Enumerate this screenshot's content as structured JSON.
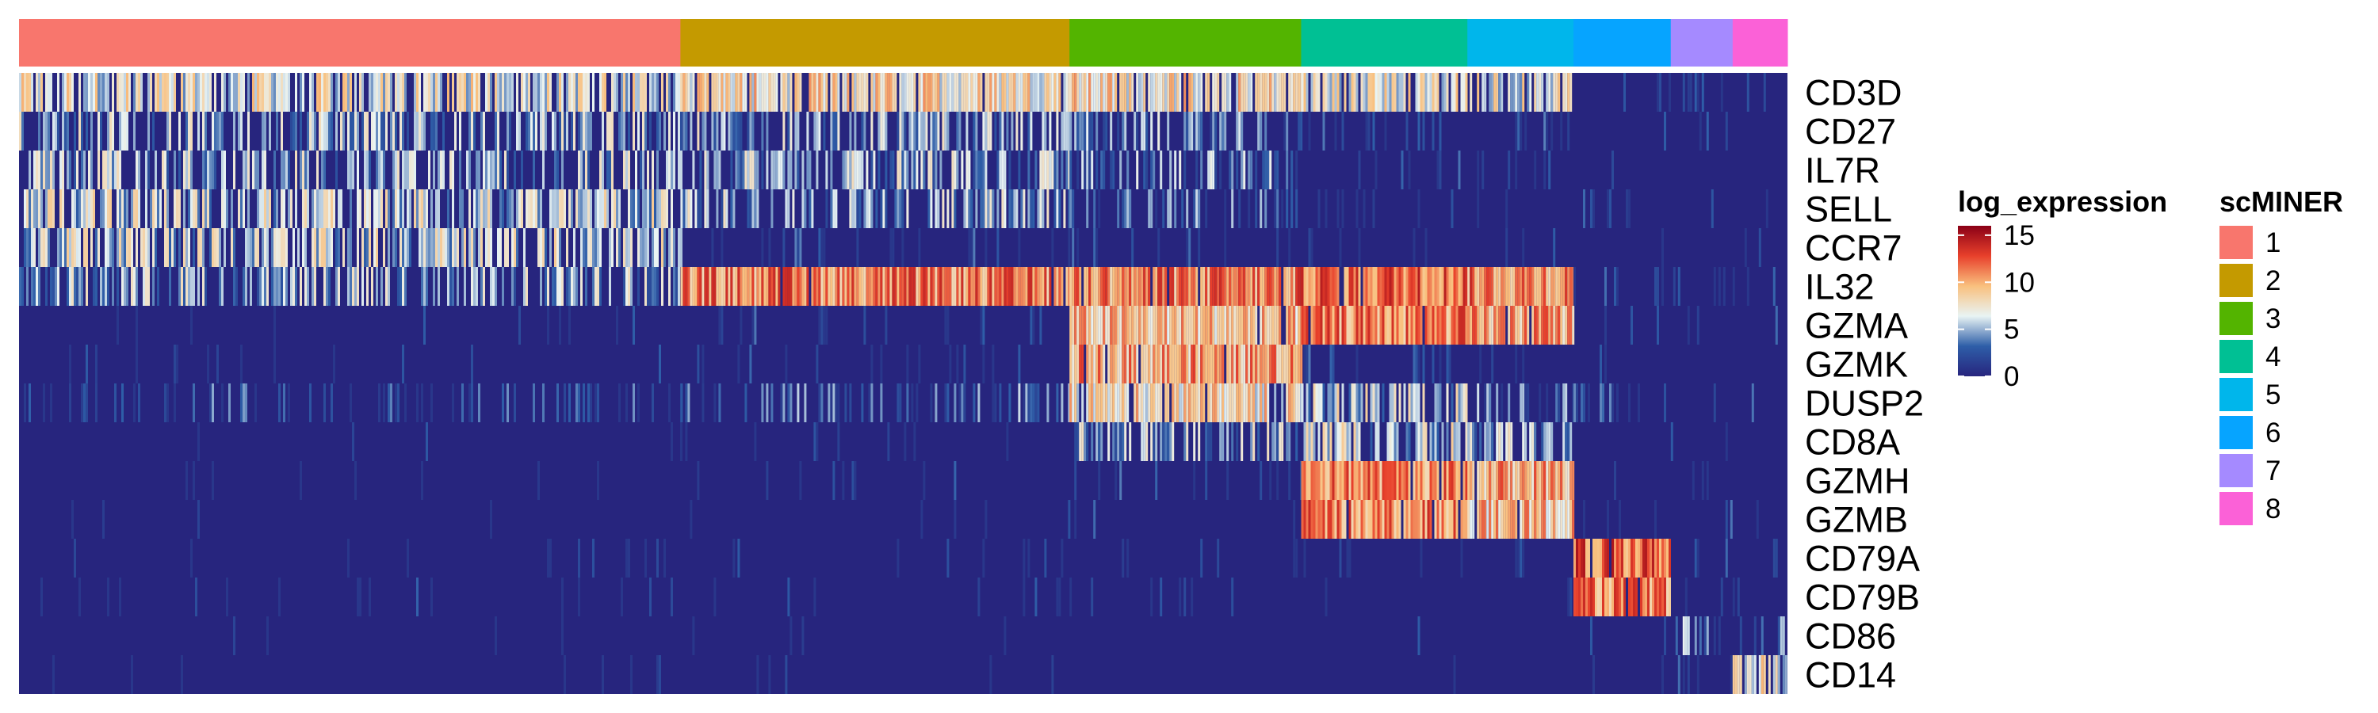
{
  "chart_data": {
    "type": "heatmap",
    "title": "",
    "genes": [
      "CD3D",
      "CD27",
      "IL7R",
      "SELL",
      "CCR7",
      "IL32",
      "GZMA",
      "GZMK",
      "DUSP2",
      "CD8A",
      "GZMH",
      "GZMB",
      "CD79A",
      "CD79B",
      "CD86",
      "CD14"
    ],
    "clusters": [
      {
        "id": "1",
        "color": "#F8766D",
        "cell_fraction": 0.374
      },
      {
        "id": "2",
        "color": "#C49A00",
        "cell_fraction": 0.22
      },
      {
        "id": "3",
        "color": "#53B400",
        "cell_fraction": 0.131
      },
      {
        "id": "4",
        "color": "#00C094",
        "cell_fraction": 0.094
      },
      {
        "id": "5",
        "color": "#00B6EB",
        "cell_fraction": 0.06
      },
      {
        "id": "6",
        "color": "#06A4FF",
        "cell_fraction": 0.055
      },
      {
        "id": "7",
        "color": "#A58AFF",
        "cell_fraction": 0.035
      },
      {
        "id": "8",
        "color": "#FB61D7",
        "cell_fraction": 0.031
      }
    ],
    "mean_expression_by_gene": {
      "CD3D": [
        7,
        8,
        8,
        7,
        7,
        0.5,
        0.5,
        0.5
      ],
      "CD27": [
        5,
        5,
        4,
        1,
        1,
        0.5,
        0.5,
        0.5
      ],
      "IL7R": [
        5,
        5,
        4,
        1,
        1,
        0.3,
        0.5,
        0.3
      ],
      "SELL": [
        6,
        5,
        3,
        1,
        0.5,
        1,
        0.5,
        1
      ],
      "CCR7": [
        6,
        1,
        1,
        0.5,
        0.5,
        0.5,
        0.3,
        0.3
      ],
      "IL32": [
        5,
        11,
        11,
        12,
        11,
        1,
        1,
        0.5
      ],
      "GZMA": [
        0.3,
        1,
        9,
        11,
        10,
        0.5,
        0.5,
        0.5
      ],
      "GZMK": [
        0.3,
        1,
        10,
        1,
        0.5,
        0.3,
        0.3,
        0.3
      ],
      "DUSP2": [
        2,
        3,
        8,
        6,
        3,
        2,
        1,
        1
      ],
      "CD8A": [
        0.2,
        0.5,
        5,
        6,
        5,
        0.2,
        0.3,
        0.2
      ],
      "GZMH": [
        0.1,
        0.5,
        1,
        11,
        10,
        0.3,
        0.3,
        0.3
      ],
      "GZMB": [
        0.1,
        0.3,
        0.5,
        11,
        9,
        0.3,
        1,
        0.5
      ],
      "CD79A": [
        0.3,
        0.3,
        0.3,
        0.3,
        0.5,
        12,
        0.5,
        0.5
      ],
      "CD79B": [
        0.3,
        0.3,
        0.3,
        0.3,
        0.5,
        11,
        1,
        0.5
      ],
      "CD86": [
        0.1,
        0.1,
        0.1,
        0.1,
        0.1,
        0.2,
        4,
        3
      ],
      "CD14": [
        0.1,
        0.1,
        0.1,
        0.1,
        0.1,
        0.1,
        2,
        7
      ]
    },
    "color_legend": {
      "title": "log_expression",
      "ticks": [
        0,
        5,
        10,
        15
      ],
      "range": [
        0,
        16
      ],
      "colors": [
        "#27257E",
        "#2E5EA8",
        "#E9F4F4",
        "#F9C07E",
        "#E8402B",
        "#8B0016"
      ]
    },
    "cluster_legend": {
      "title": "scMINER",
      "labels": [
        "1",
        "2",
        "3",
        "4",
        "5",
        "6",
        "7",
        "8"
      ]
    }
  }
}
